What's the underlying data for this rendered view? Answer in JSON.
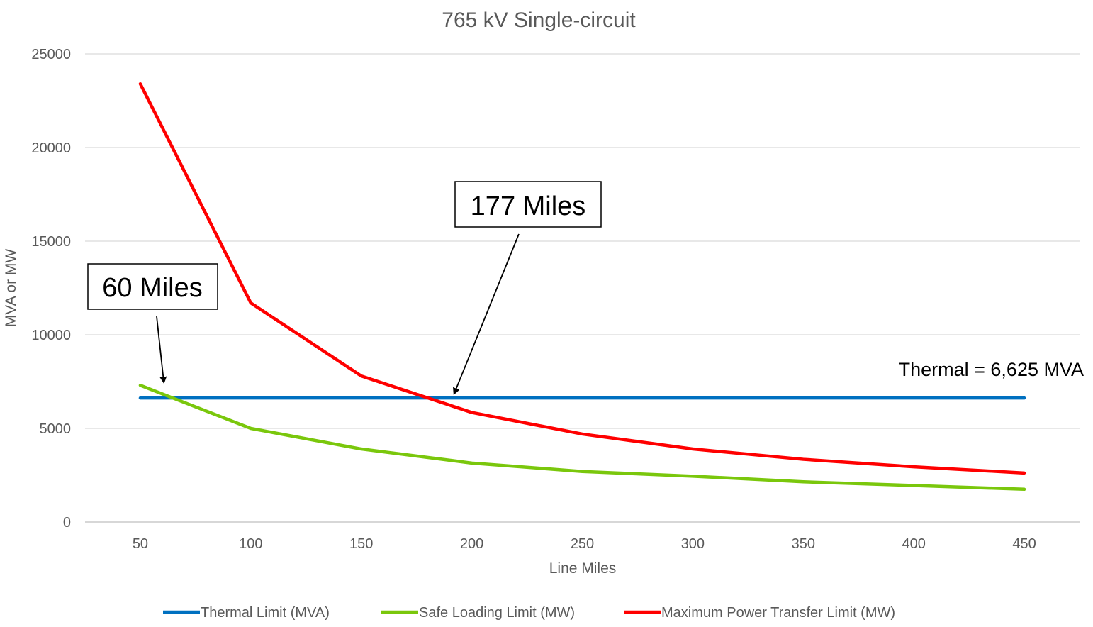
{
  "chart_data": {
    "type": "line",
    "title": "765 kV Single-circuit",
    "xlabel": "Line Miles",
    "ylabel": "MVA or MW",
    "x": [
      50,
      100,
      150,
      200,
      250,
      300,
      350,
      400,
      450
    ],
    "xlim": [
      25,
      475
    ],
    "ylim": [
      0,
      25000
    ],
    "yticks": [
      0,
      5000,
      10000,
      15000,
      20000,
      25000
    ],
    "grid": true,
    "legend_position": "bottom",
    "series": [
      {
        "name": "Thermal Limit (MVA)",
        "color": "#0070C0",
        "values": [
          6625,
          6625,
          6625,
          6625,
          6625,
          6625,
          6625,
          6625,
          6625
        ]
      },
      {
        "name": "Safe Loading Limit (MW)",
        "color": "#7AC70C",
        "values": [
          7300,
          5000,
          3900,
          3150,
          2700,
          2450,
          2150,
          1950,
          1750
        ]
      },
      {
        "name": "Maximum Power Transfer Limit (MW)",
        "color": "#FF0000",
        "values": [
          23400,
          11700,
          7800,
          5850,
          4700,
          3900,
          3350,
          2950,
          2620
        ]
      }
    ],
    "annotations": [
      {
        "text": "60 Miles",
        "x": 60,
        "y": 6625
      },
      {
        "text": "177 Miles",
        "x": 192,
        "y": 6625
      },
      {
        "text": "Thermal = 6,625 MVA"
      }
    ]
  }
}
